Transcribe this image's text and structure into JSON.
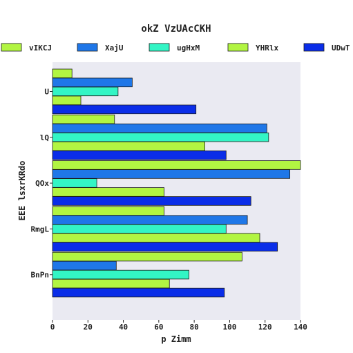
{
  "chart_data": {
    "type": "bar",
    "orientation": "horizontal",
    "title": "okZ VzUAcCKH",
    "xlabel": "p Zimm",
    "ylabel": "EEE lsxrKRdo",
    "xlim": [
      0,
      140
    ],
    "xticks": [
      0,
      20,
      40,
      60,
      80,
      100,
      120,
      140
    ],
    "grid": false,
    "legend_position": "top",
    "categories": [
      "U",
      "lQ",
      "QOx",
      "RmgL",
      "BnPn"
    ],
    "series": [
      {
        "name": "vIKCJ",
        "color": "#b2f542",
        "values": [
          11,
          35,
          141,
          63,
          107
        ]
      },
      {
        "name": "XajU",
        "color": "#1f77e8",
        "values": [
          45,
          121,
          134,
          110,
          36
        ]
      },
      {
        "name": "ugHxM",
        "color": "#33f5c5",
        "values": [
          37,
          122,
          25,
          98,
          77
        ]
      },
      {
        "name": "YHRlx",
        "color": "#b2f542",
        "values": [
          16,
          86,
          63,
          117,
          66
        ]
      },
      {
        "name": "UDwT",
        "color": "#0a2de8",
        "values": [
          81,
          98,
          112,
          127,
          97
        ]
      }
    ]
  }
}
